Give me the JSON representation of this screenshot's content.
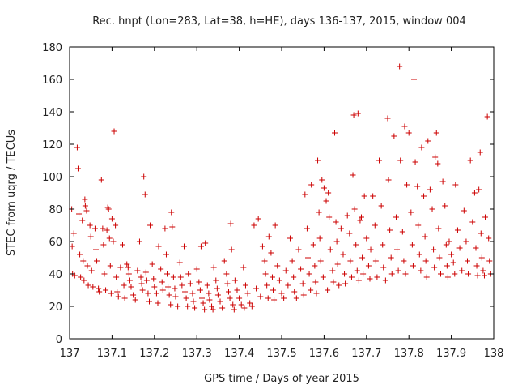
{
  "chart_data": {
    "type": "scatter",
    "title": "Rec. hnpt (Lon=283, Lat=38, h=HE), days 136-137, 2015, window 004",
    "xlabel": "GPS time / Days of year 2015",
    "ylabel": "STEC from uqrg / TECUs",
    "xlim": [
      137,
      138
    ],
    "ylim": [
      0,
      180
    ],
    "xticks": [
      "137",
      "137.1",
      "137.2",
      "137.3",
      "137.4",
      "137.5",
      "137.6",
      "137.7",
      "137.8",
      "137.9",
      "138"
    ],
    "yticks": [
      "0",
      "20",
      "40",
      "60",
      "80",
      "100",
      "120",
      "140",
      "160",
      "180"
    ],
    "grid": false,
    "marker": "+",
    "color": "#cc0000",
    "series": [
      {
        "points": [
          [
            137.005,
            80
          ],
          [
            137.006,
            57
          ],
          [
            137.007,
            40
          ],
          [
            137.01,
            65
          ],
          [
            137.012,
            39
          ],
          [
            137.018,
            118
          ],
          [
            137.02,
            105
          ],
          [
            137.022,
            77
          ],
          [
            137.024,
            52
          ],
          [
            137.026,
            38
          ],
          [
            137.03,
            73
          ],
          [
            137.032,
            48
          ],
          [
            137.034,
            36
          ],
          [
            137.036,
            86
          ],
          [
            137.037,
            82
          ],
          [
            137.04,
            79
          ],
          [
            137.042,
            45
          ],
          [
            137.044,
            33
          ],
          [
            137.048,
            70
          ],
          [
            137.05,
            63
          ],
          [
            137.052,
            42
          ],
          [
            137.055,
            32
          ],
          [
            137.06,
            68
          ],
          [
            137.062,
            55
          ],
          [
            137.064,
            48
          ],
          [
            137.068,
            31
          ],
          [
            137.07,
            29
          ],
          [
            137.075,
            98
          ],
          [
            137.078,
            68
          ],
          [
            137.08,
            58
          ],
          [
            137.082,
            40
          ],
          [
            137.085,
            30
          ],
          [
            137.088,
            67
          ],
          [
            137.09,
            81
          ],
          [
            137.092,
            80
          ],
          [
            137.094,
            62
          ],
          [
            137.096,
            45
          ],
          [
            137.098,
            28
          ],
          [
            137.1,
            74
          ],
          [
            137.103,
            60
          ],
          [
            137.105,
            128
          ],
          [
            137.108,
            70
          ],
          [
            137.11,
            38
          ],
          [
            137.112,
            29
          ],
          [
            137.115,
            26
          ],
          [
            137.12,
            44
          ],
          [
            137.125,
            58
          ],
          [
            137.128,
            33
          ],
          [
            137.13,
            25
          ],
          [
            137.135,
            46
          ],
          [
            137.138,
            44
          ],
          [
            137.14,
            40
          ],
          [
            137.142,
            36
          ],
          [
            137.145,
            32
          ],
          [
            137.15,
            27
          ],
          [
            137.155,
            24
          ],
          [
            137.16,
            42
          ],
          [
            137.165,
            60
          ],
          [
            137.168,
            38
          ],
          [
            137.17,
            34
          ],
          [
            137.172,
            30
          ],
          [
            137.175,
            100
          ],
          [
            137.178,
            89
          ],
          [
            137.18,
            41
          ],
          [
            137.182,
            36
          ],
          [
            137.185,
            28
          ],
          [
            137.188,
            23
          ],
          [
            137.19,
            70
          ],
          [
            137.195,
            46
          ],
          [
            137.198,
            37
          ],
          [
            137.2,
            32
          ],
          [
            137.205,
            28
          ],
          [
            137.208,
            22
          ],
          [
            137.21,
            57
          ],
          [
            137.215,
            43
          ],
          [
            137.218,
            35
          ],
          [
            137.22,
            30
          ],
          [
            137.225,
            68
          ],
          [
            137.228,
            52
          ],
          [
            137.23,
            40
          ],
          [
            137.232,
            32
          ],
          [
            137.235,
            27
          ],
          [
            137.238,
            21
          ],
          [
            137.24,
            78
          ],
          [
            137.242,
            69
          ],
          [
            137.245,
            38
          ],
          [
            137.248,
            31
          ],
          [
            137.25,
            26
          ],
          [
            137.255,
            20
          ],
          [
            137.26,
            47
          ],
          [
            137.262,
            38
          ],
          [
            137.265,
            33
          ],
          [
            137.27,
            57
          ],
          [
            137.272,
            29
          ],
          [
            137.275,
            25
          ],
          [
            137.278,
            20
          ],
          [
            137.28,
            40
          ],
          [
            137.285,
            34
          ],
          [
            137.29,
            28
          ],
          [
            137.292,
            23
          ],
          [
            137.295,
            19
          ],
          [
            137.3,
            43
          ],
          [
            137.305,
            35
          ],
          [
            137.308,
            30
          ],
          [
            137.31,
            57
          ],
          [
            137.312,
            25
          ],
          [
            137.315,
            22
          ],
          [
            137.318,
            18
          ],
          [
            137.32,
            59
          ],
          [
            137.325,
            33
          ],
          [
            137.328,
            28
          ],
          [
            137.33,
            24
          ],
          [
            137.335,
            20
          ],
          [
            137.338,
            18
          ],
          [
            137.34,
            44
          ],
          [
            137.345,
            36
          ],
          [
            137.348,
            31
          ],
          [
            137.35,
            27
          ],
          [
            137.355,
            23
          ],
          [
            137.36,
            19
          ],
          [
            137.365,
            48
          ],
          [
            137.37,
            40
          ],
          [
            137.372,
            34
          ],
          [
            137.375,
            29
          ],
          [
            137.378,
            25
          ],
          [
            137.38,
            71
          ],
          [
            137.382,
            55
          ],
          [
            137.385,
            21
          ],
          [
            137.388,
            18
          ],
          [
            137.39,
            36
          ],
          [
            137.395,
            30
          ],
          [
            137.4,
            25
          ],
          [
            137.405,
            21
          ],
          [
            137.41,
            44
          ],
          [
            137.412,
            19
          ],
          [
            137.415,
            33
          ],
          [
            137.42,
            28
          ],
          [
            137.425,
            22
          ],
          [
            137.43,
            20
          ],
          [
            137.435,
            70
          ],
          [
            137.44,
            31
          ],
          [
            137.445,
            74
          ],
          [
            137.45,
            26
          ],
          [
            137.455,
            57
          ],
          [
            137.46,
            48
          ],
          [
            137.462,
            40
          ],
          [
            137.465,
            33
          ],
          [
            137.468,
            25
          ],
          [
            137.47,
            63
          ],
          [
            137.475,
            53
          ],
          [
            137.478,
            38
          ],
          [
            137.48,
            30
          ],
          [
            137.482,
            24
          ],
          [
            137.485,
            70
          ],
          [
            137.49,
            45
          ],
          [
            137.495,
            36
          ],
          [
            137.5,
            28
          ],
          [
            137.505,
            25
          ],
          [
            137.51,
            42
          ],
          [
            137.515,
            33
          ],
          [
            137.52,
            62
          ],
          [
            137.525,
            48
          ],
          [
            137.528,
            38
          ],
          [
            137.53,
            29
          ],
          [
            137.535,
            25
          ],
          [
            137.54,
            55
          ],
          [
            137.545,
            43
          ],
          [
            137.55,
            34
          ],
          [
            137.552,
            27
          ],
          [
            137.555,
            89
          ],
          [
            137.56,
            68
          ],
          [
            137.562,
            50
          ],
          [
            137.565,
            40
          ],
          [
            137.568,
            30
          ],
          [
            137.57,
            95
          ],
          [
            137.575,
            58
          ],
          [
            137.578,
            45
          ],
          [
            137.58,
            35
          ],
          [
            137.582,
            28
          ],
          [
            137.585,
            110
          ],
          [
            137.588,
            78
          ],
          [
            137.59,
            62
          ],
          [
            137.592,
            48
          ],
          [
            137.595,
            98
          ],
          [
            137.598,
            38
          ],
          [
            137.6,
            93
          ],
          [
            137.605,
            85
          ],
          [
            137.608,
            30
          ],
          [
            137.61,
            90
          ],
          [
            137.612,
            75
          ],
          [
            137.615,
            55
          ],
          [
            137.62,
            42
          ],
          [
            137.622,
            35
          ],
          [
            137.625,
            127
          ],
          [
            137.628,
            72
          ],
          [
            137.63,
            60
          ],
          [
            137.632,
            46
          ],
          [
            137.635,
            33
          ],
          [
            137.64,
            68
          ],
          [
            137.645,
            52
          ],
          [
            137.648,
            40
          ],
          [
            137.65,
            34
          ],
          [
            137.655,
            76
          ],
          [
            137.66,
            65
          ],
          [
            137.662,
            48
          ],
          [
            137.665,
            38
          ],
          [
            137.668,
            101
          ],
          [
            137.67,
            138
          ],
          [
            137.672,
            80
          ],
          [
            137.675,
            58
          ],
          [
            137.678,
            42
          ],
          [
            137.68,
            139
          ],
          [
            137.682,
            36
          ],
          [
            137.685,
            73
          ],
          [
            137.688,
            75
          ],
          [
            137.69,
            50
          ],
          [
            137.692,
            40
          ],
          [
            137.695,
            88
          ],
          [
            137.7,
            62
          ],
          [
            137.705,
            45
          ],
          [
            137.708,
            37
          ],
          [
            137.71,
            55
          ],
          [
            137.715,
            88
          ],
          [
            137.72,
            70
          ],
          [
            137.722,
            48
          ],
          [
            137.725,
            38
          ],
          [
            137.73,
            110
          ],
          [
            137.735,
            82
          ],
          [
            137.738,
            58
          ],
          [
            137.74,
            44
          ],
          [
            137.745,
            36
          ],
          [
            137.75,
            136
          ],
          [
            137.752,
            98
          ],
          [
            137.755,
            67
          ],
          [
            137.758,
            50
          ],
          [
            137.76,
            40
          ],
          [
            137.765,
            125
          ],
          [
            137.77,
            75
          ],
          [
            137.772,
            55
          ],
          [
            137.775,
            42
          ],
          [
            137.778,
            168
          ],
          [
            137.78,
            110
          ],
          [
            137.785,
            66
          ],
          [
            137.788,
            48
          ],
          [
            137.79,
            131
          ],
          [
            137.792,
            40
          ],
          [
            137.795,
            95
          ],
          [
            137.8,
            127
          ],
          [
            137.805,
            78
          ],
          [
            137.808,
            58
          ],
          [
            137.81,
            45
          ],
          [
            137.812,
            160
          ],
          [
            137.815,
            109
          ],
          [
            137.82,
            94
          ],
          [
            137.822,
            70
          ],
          [
            137.825,
            52
          ],
          [
            137.828,
            42
          ],
          [
            137.83,
            118
          ],
          [
            137.835,
            88
          ],
          [
            137.838,
            63
          ],
          [
            137.84,
            48
          ],
          [
            137.842,
            38
          ],
          [
            137.845,
            122
          ],
          [
            137.85,
            92
          ],
          [
            137.855,
            80
          ],
          [
            137.858,
            55
          ],
          [
            137.86,
            44
          ],
          [
            137.862,
            112
          ],
          [
            137.865,
            127
          ],
          [
            137.868,
            108
          ],
          [
            137.87,
            68
          ],
          [
            137.872,
            50
          ],
          [
            137.875,
            40
          ],
          [
            137.88,
            97
          ],
          [
            137.885,
            82
          ],
          [
            137.888,
            58
          ],
          [
            137.89,
            45
          ],
          [
            137.892,
            38
          ],
          [
            137.895,
            60
          ],
          [
            137.9,
            52
          ],
          [
            137.905,
            47
          ],
          [
            137.908,
            40
          ],
          [
            137.91,
            95
          ],
          [
            137.915,
            67
          ],
          [
            137.92,
            56
          ],
          [
            137.925,
            42
          ],
          [
            137.93,
            79
          ],
          [
            137.935,
            60
          ],
          [
            137.938,
            48
          ],
          [
            137.94,
            40
          ],
          [
            137.945,
            110
          ],
          [
            137.95,
            72
          ],
          [
            137.955,
            90
          ],
          [
            137.958,
            56
          ],
          [
            137.96,
            45
          ],
          [
            137.962,
            39
          ],
          [
            137.965,
            92
          ],
          [
            137.968,
            115
          ],
          [
            137.97,
            65
          ],
          [
            137.972,
            50
          ],
          [
            137.975,
            42
          ],
          [
            137.978,
            39
          ],
          [
            137.98,
            75
          ],
          [
            137.985,
            137
          ],
          [
            137.988,
            62
          ],
          [
            137.99,
            48
          ],
          [
            137.993,
            40
          ]
        ]
      }
    ]
  }
}
